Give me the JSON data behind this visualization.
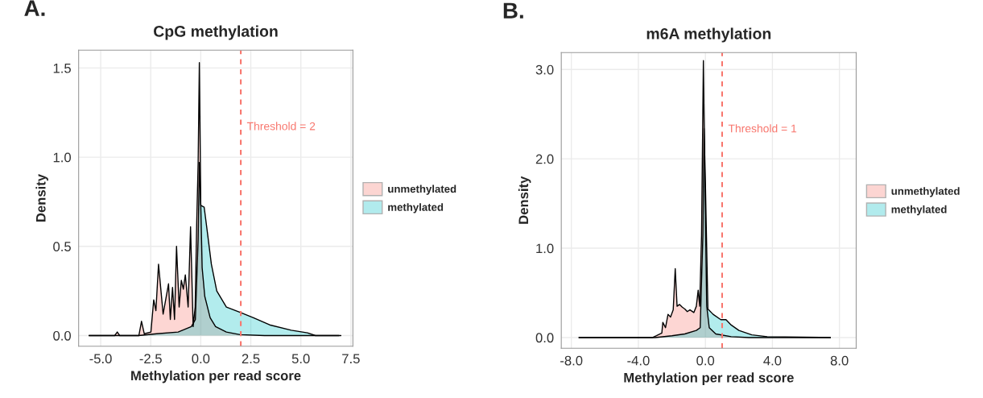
{
  "chart_data": [
    {
      "type": "area",
      "title": "CpG methylation",
      "xlabel": "Methylation per read score",
      "ylabel": "Density",
      "annotations": [
        "A."
      ],
      "xlim": [
        -6.1,
        7.6
      ],
      "xticks": [
        {
          "value": -5,
          "label": "-5.0"
        },
        {
          "value": -2.5,
          "label": "-2.5"
        },
        {
          "value": 0,
          "label": "0.0"
        },
        {
          "value": 2.5,
          "label": "2.5"
        },
        {
          "value": 5,
          "label": "5.0"
        },
        {
          "value": 7.5,
          "label": "7.5"
        }
      ],
      "ylim": [
        -0.06,
        1.6
      ],
      "yticks": [
        {
          "value": 0,
          "label": "0.0"
        },
        {
          "value": 0.5,
          "label": "0.5"
        },
        {
          "value": 1,
          "label": "1.0"
        },
        {
          "value": 1.5,
          "label": "1.5"
        }
      ],
      "grid": true,
      "legend": "right",
      "ref_lines": [
        {
          "axis": "x",
          "value": 2,
          "label": "Threshold = 2",
          "color": "#f8766d",
          "line_style": "dashed"
        }
      ],
      "series": [
        {
          "name": "unmethylated",
          "color": "#f8766d",
          "x": [
            -5.58,
            -4.3,
            -4.17,
            -4.05,
            -3.09,
            -2.96,
            -2.82,
            -2.49,
            -2.35,
            -2.24,
            -2.11,
            -1.88,
            -1.61,
            -1.52,
            -1.41,
            -1.31,
            -1.21,
            -1.08,
            -0.97,
            -0.87,
            -0.77,
            -0.63,
            -0.51,
            -0.38,
            -0.28,
            -0.2,
            -0.13,
            -0.07,
            0.0,
            0.07,
            0.2,
            0.47,
            0.74,
            1.28,
            1.96,
            3.18,
            6.9
          ],
          "values": [
            0,
            0,
            0.02,
            0,
            0,
            0.08,
            0.01,
            0.02,
            0.2,
            0.14,
            0.4,
            0.12,
            0.29,
            0.09,
            0.27,
            0.09,
            0.5,
            0.16,
            0.31,
            0.26,
            0.34,
            0.16,
            0.61,
            0.05,
            0.16,
            0.64,
            0.97,
            1.53,
            0.74,
            0.38,
            0.22,
            0.1,
            0.05,
            0.02,
            0.005,
            0,
            0
          ]
        },
        {
          "name": "methylated",
          "color": "#00bfc4",
          "x": [
            -5.58,
            -3.1,
            -2.2,
            -1.13,
            -0.47,
            -0.27,
            -0.13,
            -0.07,
            0.0,
            0.17,
            0.33,
            0.53,
            0.8,
            1.28,
            1.96,
            2.63,
            3.44,
            4.52,
            5.33,
            5.73,
            7.0
          ],
          "values": [
            0,
            0,
            0.01,
            0.02,
            0.05,
            0.09,
            0.54,
            0.97,
            0.73,
            0.72,
            0.58,
            0.4,
            0.25,
            0.16,
            0.13,
            0.1,
            0.06,
            0.03,
            0.015,
            0,
            0
          ]
        }
      ]
    },
    {
      "type": "area",
      "title": "m6A methylation",
      "xlabel": "Methylation per read score",
      "ylabel": "Density",
      "annotations": [
        "B."
      ],
      "xlim": [
        -8.6,
        9.0
      ],
      "xticks": [
        {
          "value": -8,
          "label": "-8.0"
        },
        {
          "value": -4,
          "label": "-4.0"
        },
        {
          "value": 0,
          "label": "0.0"
        },
        {
          "value": 4,
          "label": "4.0"
        },
        {
          "value": 8,
          "label": "8.0"
        }
      ],
      "ylim": [
        -0.12,
        3.19
      ],
      "yticks": [
        {
          "value": 0,
          "label": "0.0"
        },
        {
          "value": 1,
          "label": "1.0"
        },
        {
          "value": 2,
          "label": "2.0"
        },
        {
          "value": 3,
          "label": "3.0"
        }
      ],
      "grid": true,
      "legend": "right",
      "ref_lines": [
        {
          "axis": "x",
          "value": 1,
          "label": "Threshold = 1",
          "color": "#f8766d",
          "line_style": "dashed"
        }
      ],
      "series": [
        {
          "name": "unmethylated",
          "color": "#f8766d",
          "x": [
            -7.54,
            -3.15,
            -2.92,
            -2.6,
            -2.54,
            -2.38,
            -2.23,
            -2.08,
            -1.92,
            -1.8,
            -1.69,
            -1.54,
            -1.38,
            -1.23,
            -1.08,
            -0.92,
            -0.69,
            -0.54,
            -0.43,
            -0.34,
            -0.23,
            -0.12,
            -0.03,
            0.08,
            0.23,
            0.62,
            1.54,
            2.6,
            7.46
          ],
          "values": [
            0,
            0,
            0.02,
            0.05,
            0.17,
            0.11,
            0.26,
            0.23,
            0.31,
            0.77,
            0.35,
            0.37,
            0.34,
            0.32,
            0.29,
            0.31,
            0.28,
            0.35,
            0.53,
            0.35,
            1.14,
            3.1,
            1.74,
            0.35,
            0.11,
            0.04,
            0.01,
            0,
            0
          ]
        },
        {
          "name": "methylated",
          "color": "#00bfc4",
          "x": [
            -7.54,
            -3.0,
            -2.0,
            -1.23,
            -0.54,
            -0.31,
            -0.15,
            -0.08,
            0.0,
            0.15,
            0.46,
            0.92,
            1.23,
            1.54,
            2.0,
            2.77,
            3.69,
            7.46
          ],
          "values": [
            0,
            0,
            0.02,
            0.04,
            0.08,
            0.11,
            1.14,
            2.34,
            1.74,
            0.32,
            0.26,
            0.2,
            0.2,
            0.14,
            0.08,
            0.03,
            0.01,
            0
          ]
        }
      ]
    }
  ]
}
